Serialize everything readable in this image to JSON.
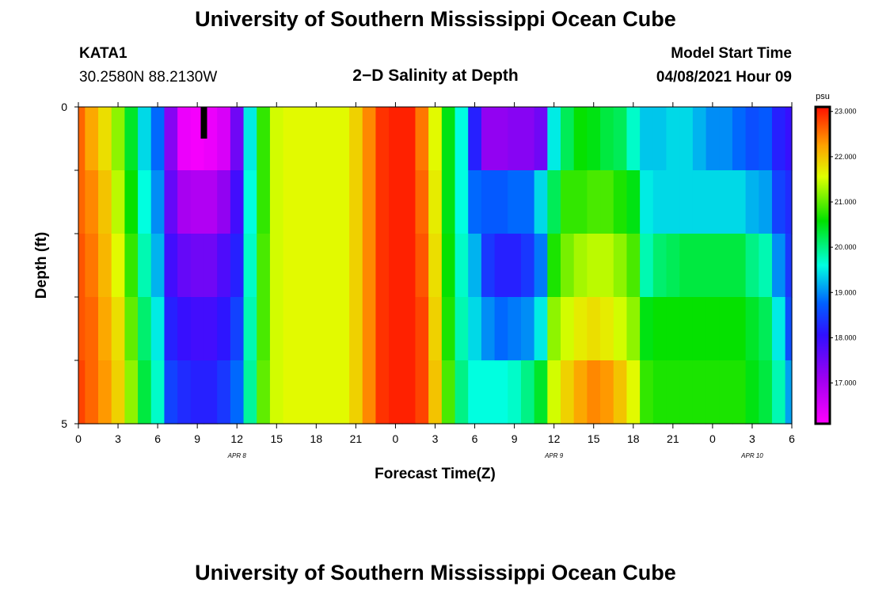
{
  "header": {
    "title": "University of Southern Mississippi Ocean Cube",
    "station": "KATA1",
    "coords": "30.2580N  88.2130W",
    "subtitle": "2−D Salinity at Depth",
    "model_label": "Model Start Time",
    "model_time": "04/08/2021 Hour 09"
  },
  "footer": {
    "title": "University of Southern Mississippi Ocean Cube"
  },
  "chart_data": {
    "type": "heatmap",
    "title": "2−D Salinity at Depth",
    "xlabel": "Forecast Time(Z)",
    "ylabel": "Depth (ft)",
    "x_hours": [
      0,
      1,
      2,
      3,
      4,
      5,
      6,
      7,
      8,
      9,
      10,
      11,
      12,
      13,
      14,
      15,
      16,
      17,
      18,
      19,
      20,
      21,
      22,
      23,
      24,
      25,
      26,
      27,
      28,
      29,
      30,
      31,
      32,
      33,
      34,
      35,
      36,
      37,
      38,
      39,
      40,
      41,
      42,
      43,
      44,
      45,
      46,
      47,
      48,
      49,
      50,
      51,
      52,
      53,
      54
    ],
    "xlim": [
      0,
      54
    ],
    "x_ticks": [
      0,
      3,
      6,
      9,
      12,
      15,
      18,
      21,
      24,
      27,
      30,
      33,
      36,
      39,
      42,
      45,
      48,
      51,
      54
    ],
    "x_tick_labels": [
      "0",
      "3",
      "6",
      "9",
      "12",
      "15",
      "18",
      "21",
      "0",
      "3",
      "6",
      "9",
      "12",
      "15",
      "18",
      "21",
      "0",
      "3",
      "6"
    ],
    "date_labels": [
      {
        "text": "APR  8",
        "hour": 12
      },
      {
        "text": "APR  9",
        "hour": 36
      },
      {
        "text": "APR  10",
        "hour": 51
      }
    ],
    "ylim": [
      0,
      5
    ],
    "y_tick_labels": [
      "0",
      "5"
    ],
    "depths": [
      0,
      1,
      2,
      3,
      4,
      5
    ],
    "marker_hour": 9.5,
    "colorbar": {
      "unit": "psu",
      "min": 16.1,
      "max": 23.1,
      "tick_values": [
        17,
        18,
        19,
        20,
        21,
        22,
        23
      ],
      "tick_labels": [
        "17.000",
        "18.000",
        "19.000",
        "20.000",
        "21.000",
        "22.000",
        "23.000"
      ]
    },
    "salinity": [
      [
        22.6,
        22.2,
        21.8,
        21.2,
        20.4,
        19.4,
        18.8,
        17.3,
        16.3,
        16.2,
        16.3,
        16.5,
        17.5,
        19.5,
        20.8,
        21.5,
        21.6,
        21.6,
        21.6,
        21.6,
        21.6,
        21.9,
        22.4,
        22.9,
        23.0,
        23.0,
        22.5,
        21.6,
        20.5,
        19.6,
        18.2,
        17.2,
        17.2,
        17.3,
        17.3,
        17.5,
        19.5,
        20.2,
        20.6,
        20.5,
        20.3,
        20.2,
        19.7,
        19.3,
        19.3,
        19.4,
        19.4,
        19.2,
        19.0,
        19.0,
        18.8,
        18.6,
        18.7,
        18.2,
        18.0
      ],
      [
        22.6,
        22.4,
        22.0,
        21.4,
        20.6,
        19.6,
        19.0,
        17.6,
        17.0,
        16.9,
        16.9,
        17.2,
        17.9,
        19.6,
        20.8,
        21.5,
        21.6,
        21.6,
        21.6,
        21.6,
        21.6,
        21.9,
        22.4,
        22.9,
        23.0,
        23.0,
        22.6,
        21.7,
        20.5,
        19.6,
        18.8,
        18.7,
        18.7,
        18.8,
        18.8,
        19.4,
        20.2,
        20.8,
        20.8,
        20.9,
        20.9,
        20.7,
        20.5,
        19.5,
        19.4,
        19.4,
        19.4,
        19.4,
        19.4,
        19.4,
        19.4,
        19.2,
        19.1,
        18.5,
        18.3
      ],
      [
        22.7,
        22.5,
        22.1,
        21.6,
        20.8,
        19.8,
        19.2,
        17.9,
        17.6,
        17.5,
        17.5,
        17.8,
        18.2,
        19.7,
        20.9,
        21.5,
        21.6,
        21.6,
        21.6,
        21.6,
        21.6,
        21.9,
        22.4,
        22.9,
        23.0,
        23.0,
        22.7,
        21.8,
        20.6,
        19.7,
        19.2,
        18.4,
        18.2,
        18.2,
        18.4,
        18.9,
        20.7,
        21.1,
        21.3,
        21.4,
        21.4,
        21.2,
        20.9,
        19.8,
        20.1,
        20.2,
        20.3,
        20.3,
        20.3,
        20.3,
        20.3,
        20.0,
        19.8,
        19.0,
        18.4
      ],
      [
        22.7,
        22.6,
        22.2,
        21.8,
        21.0,
        20.1,
        19.5,
        18.2,
        18.0,
        17.9,
        17.9,
        18.1,
        18.5,
        19.8,
        20.9,
        21.5,
        21.6,
        21.6,
        21.6,
        21.6,
        21.6,
        21.9,
        22.4,
        22.9,
        23.0,
        23.0,
        22.8,
        21.9,
        20.7,
        19.8,
        19.4,
        19.0,
        18.8,
        18.9,
        19.0,
        19.5,
        21.2,
        21.5,
        21.7,
        21.8,
        21.7,
        21.5,
        21.2,
        20.5,
        20.6,
        20.6,
        20.6,
        20.6,
        20.6,
        20.6,
        20.6,
        20.4,
        20.2,
        19.5,
        18.6
      ],
      [
        22.8,
        22.6,
        22.3,
        21.9,
        21.2,
        20.3,
        19.7,
        18.5,
        18.3,
        18.2,
        18.2,
        18.4,
        18.8,
        19.9,
        21.0,
        21.5,
        21.6,
        21.6,
        21.6,
        21.6,
        21.6,
        21.9,
        22.4,
        22.9,
        23.0,
        23.0,
        22.8,
        22.0,
        20.9,
        20.0,
        19.6,
        19.6,
        19.6,
        19.7,
        20.0,
        20.4,
        21.5,
        21.9,
        22.2,
        22.4,
        22.3,
        22.0,
        21.6,
        20.8,
        20.7,
        20.7,
        20.7,
        20.7,
        20.7,
        20.7,
        20.7,
        20.5,
        20.3,
        19.8,
        19.1
      ]
    ]
  }
}
